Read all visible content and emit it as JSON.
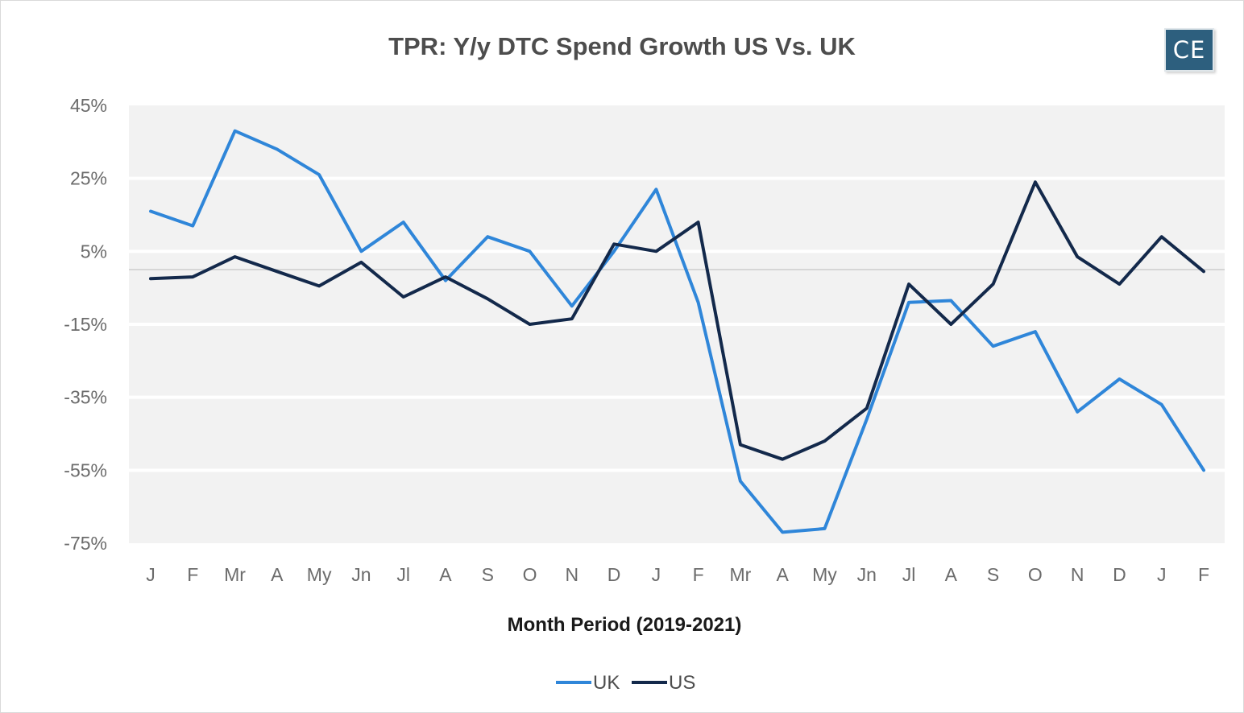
{
  "chart_data": {
    "type": "line",
    "title": "TPR: Y/y DTC Spend Growth US Vs. UK",
    "xlabel": "Month Period (2019-2021)",
    "ylabel": "",
    "ylim": [
      -75,
      45
    ],
    "yticks": [
      "45%",
      "25%",
      "5%",
      "-15%",
      "-35%",
      "-55%",
      "-75%"
    ],
    "ytick_values": [
      45,
      25,
      5,
      -15,
      -35,
      -55,
      -75
    ],
    "grid": true,
    "legend": "bottom",
    "categories": [
      "J",
      "F",
      "Mr",
      "A",
      "My",
      "Jn",
      "Jl",
      "A",
      "S",
      "O",
      "N",
      "D",
      "J",
      "F",
      "Mr",
      "A",
      "My",
      "Jn",
      "Jl",
      "A",
      "S",
      "O",
      "N",
      "D",
      "J",
      "F"
    ],
    "series": [
      {
        "name": "UK",
        "color": "#2f86d9",
        "values": [
          16,
          12,
          38,
          33,
          26,
          5,
          13,
          -3,
          9,
          5,
          -10,
          5,
          22,
          -9,
          -58,
          -72,
          -71,
          -41,
          -9,
          -8.5,
          -21,
          -17,
          -39,
          -30,
          -37,
          -55
        ]
      },
      {
        "name": "US",
        "color": "#13294b",
        "values": [
          -2.5,
          -2,
          3.5,
          -0.5,
          -4.5,
          2,
          -7.5,
          -2,
          -8,
          -15,
          -13.5,
          7,
          5,
          13,
          -48,
          -52,
          -47,
          -38,
          -4,
          -15,
          -4,
          24,
          3.5,
          -4,
          9,
          -0.5
        ]
      }
    ]
  },
  "logo": {
    "text": "CE"
  }
}
